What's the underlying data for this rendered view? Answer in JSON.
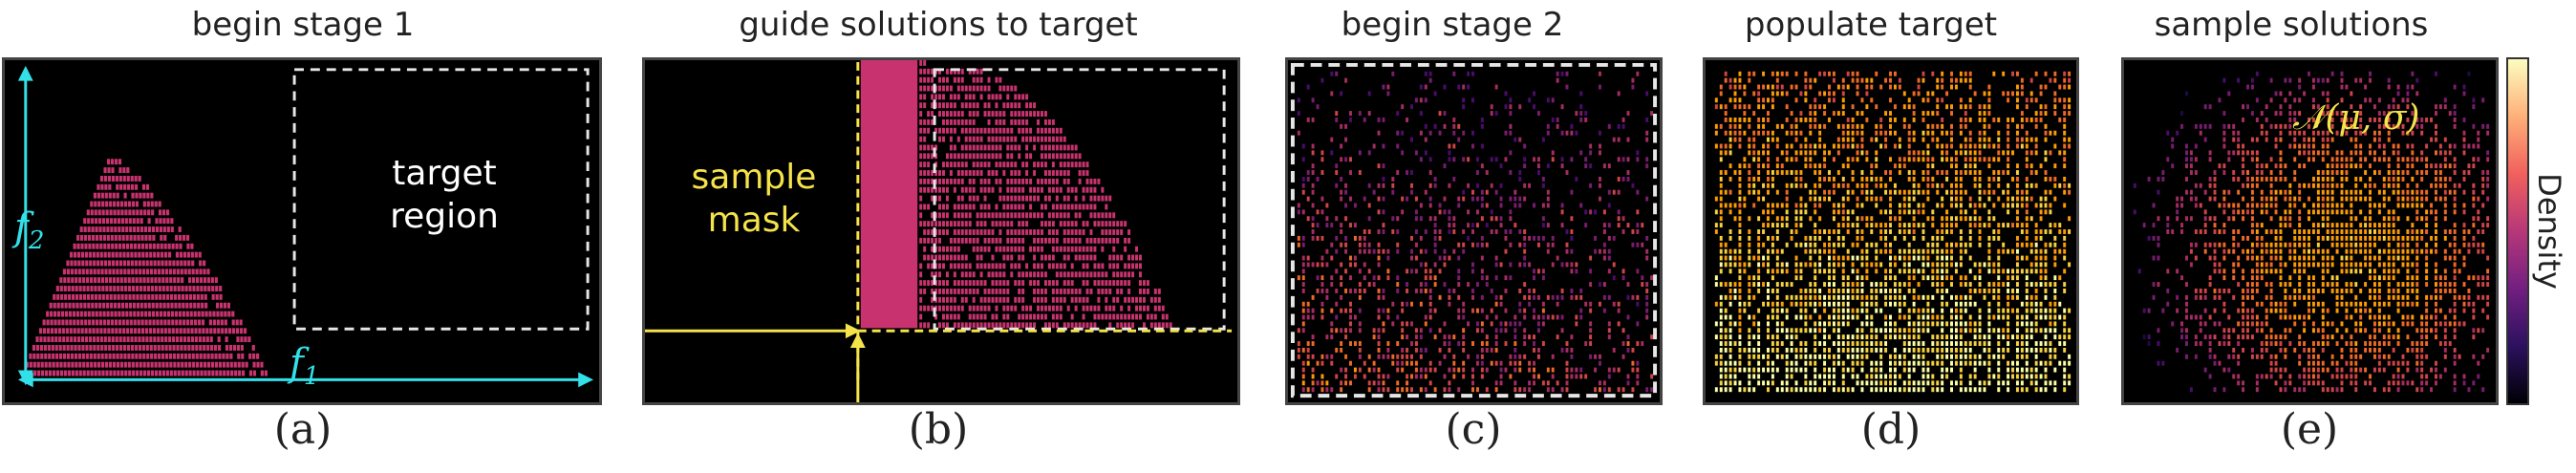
{
  "panels": [
    {
      "title": "begin stage 1",
      "caption": "(a)"
    },
    {
      "title": "guide solutions to target",
      "caption": "(b)"
    },
    {
      "title": "begin stage 2",
      "caption": "(c)"
    },
    {
      "title": "populate target",
      "caption": "(d)"
    },
    {
      "title": "sample solutions",
      "caption": "(e)"
    }
  ],
  "annotations": {
    "target_region_line1": "target",
    "target_region_line2": "region",
    "f1": "f",
    "f1_sub": "1",
    "f2": "f",
    "f2_sub": "2",
    "sample_mask_line1": "sample",
    "sample_mask_line2": "mask",
    "normal_dist": "𝒩(μ, σ)"
  },
  "colorbar": {
    "label": "Density"
  },
  "colors": {
    "stage1_fill": "#c8336f",
    "axis_arrow": "#33e0e8",
    "mask_line": "#f5e34a",
    "dashed_box": "#e6e6e6",
    "label_yellow": "#f5e34a"
  }
}
